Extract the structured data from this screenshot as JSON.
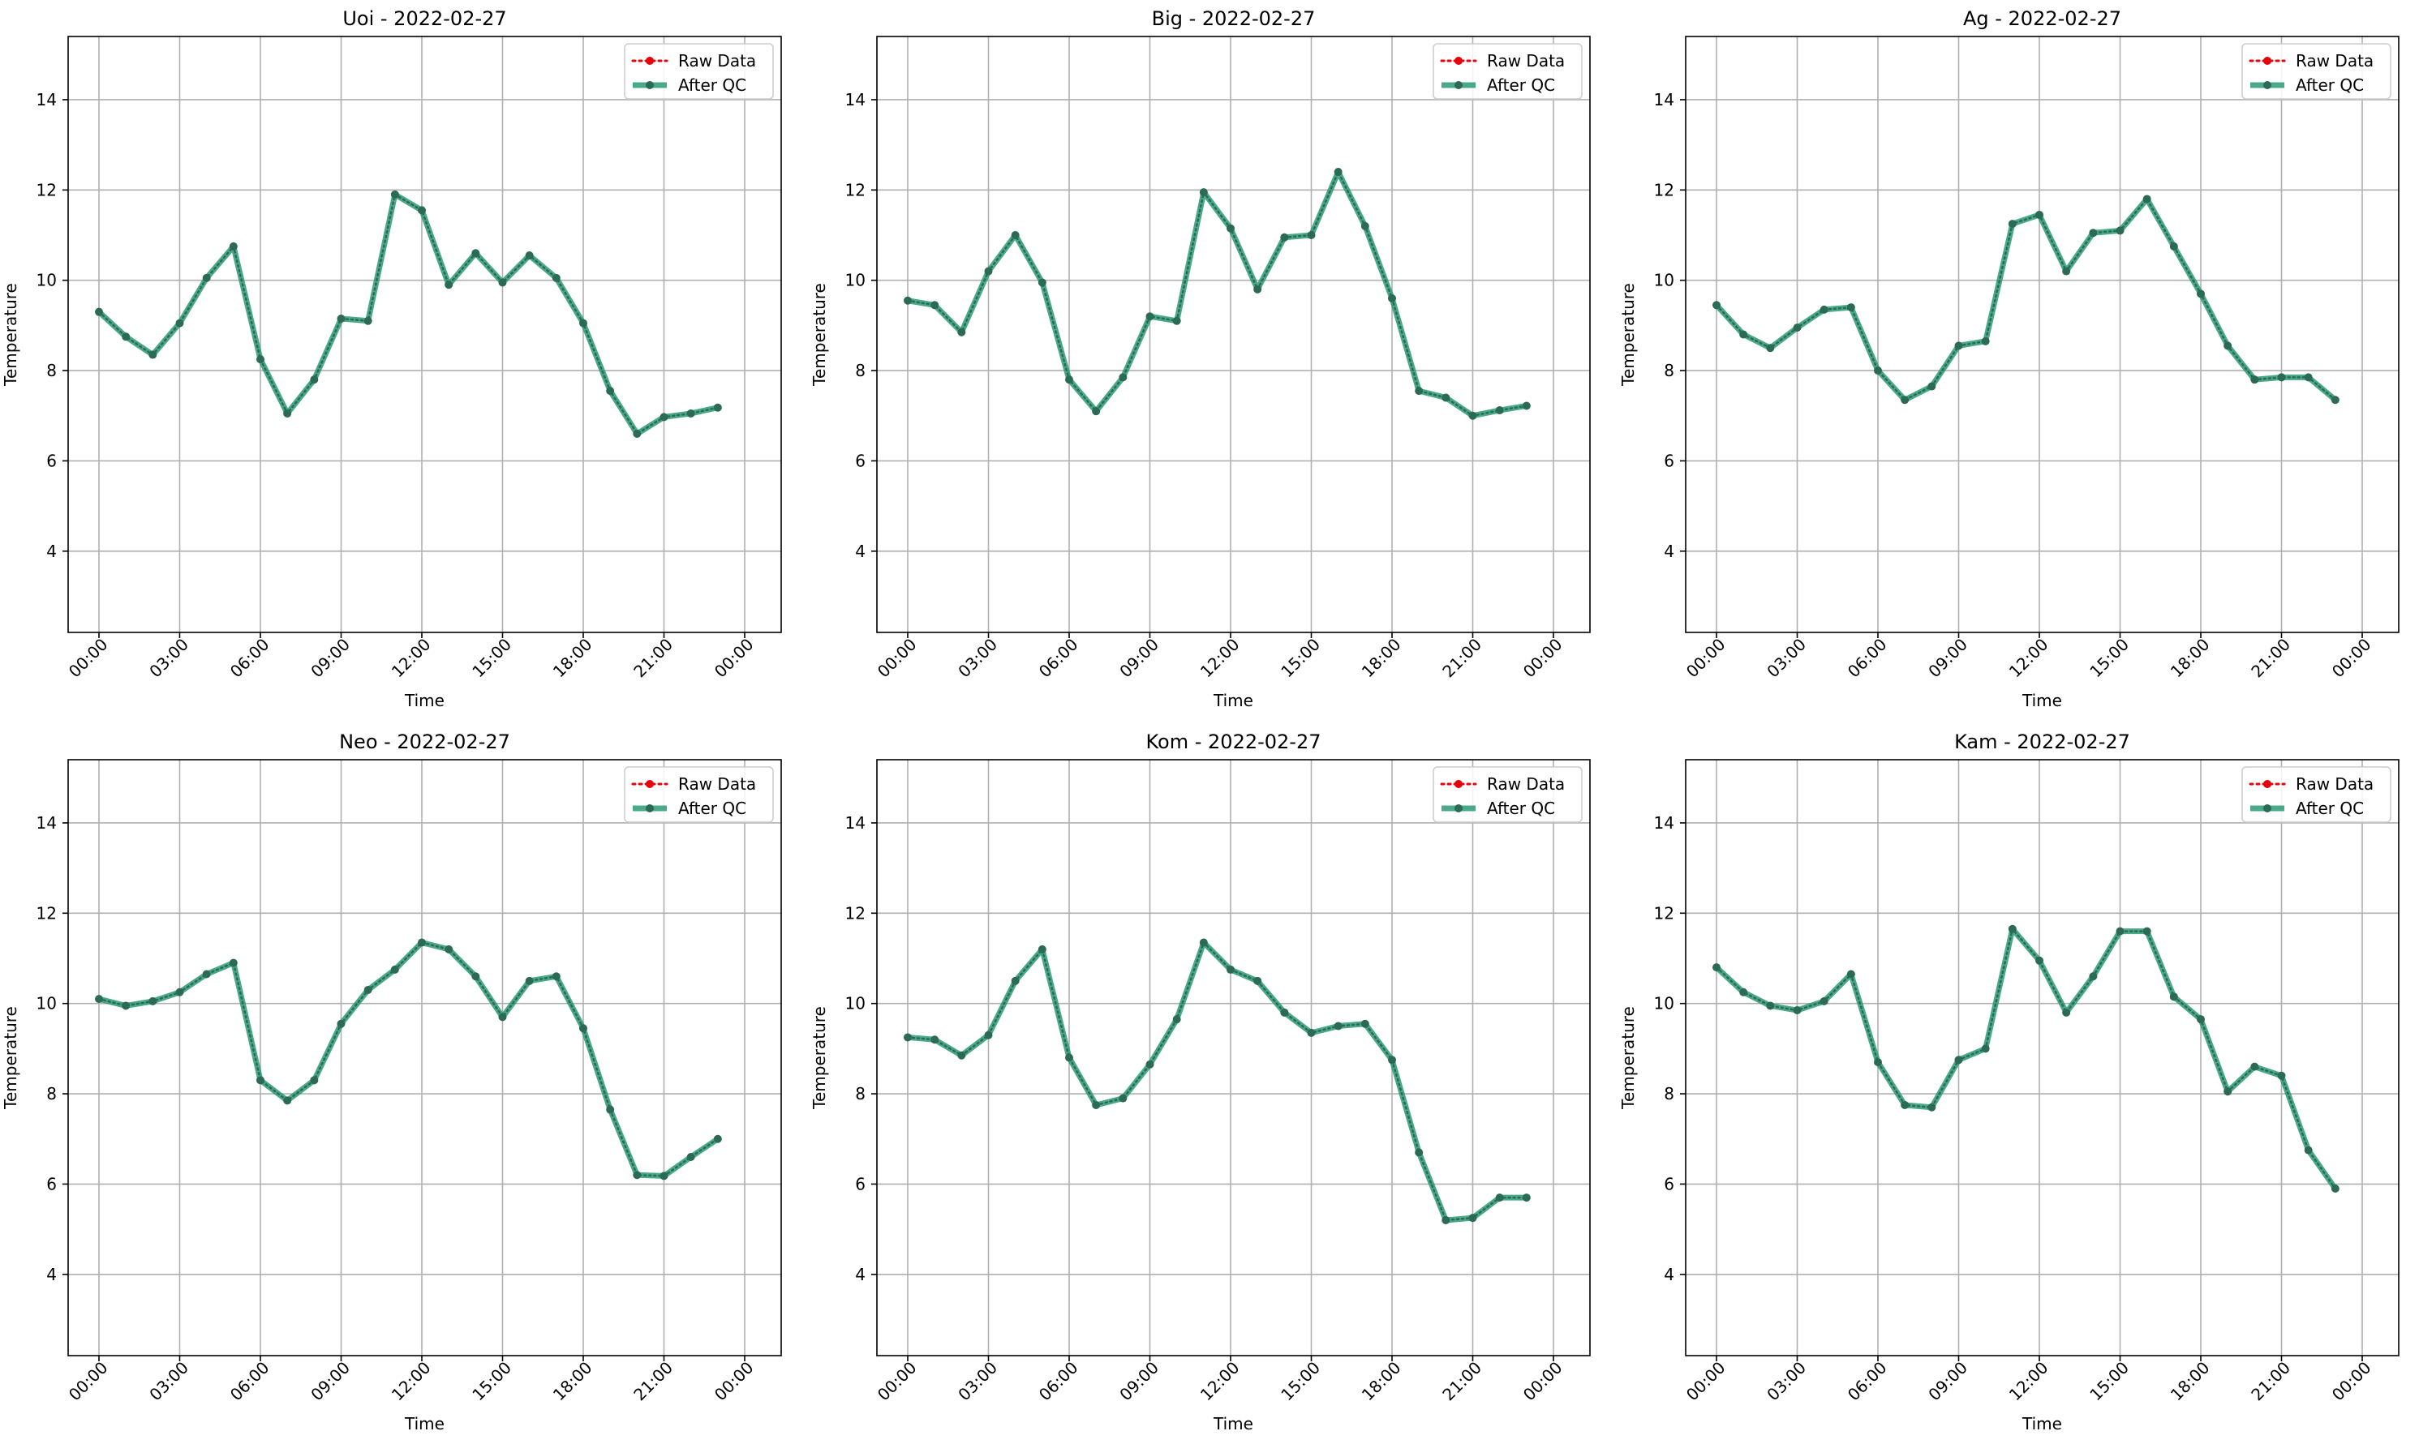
{
  "legend_labels": {
    "raw": "Raw Data",
    "qc": "After QC"
  },
  "colors": {
    "raw": "#e8000b",
    "qc": "#2a9a73",
    "marker_edge": "#2b6b55",
    "grid": "#b0b0b0",
    "axis": "#000000"
  },
  "chart_data": [
    {
      "type": "line",
      "title": "Uoi - 2022-02-27",
      "xlabel": "Time",
      "ylabel": "Temperature",
      "x_ticks": [
        "00:00",
        "03:00",
        "06:00",
        "09:00",
        "12:00",
        "15:00",
        "18:00",
        "21:00",
        "00:00"
      ],
      "y_ticks": [
        "4",
        "6",
        "8",
        "10",
        "12",
        "14"
      ],
      "ylim": [
        2.2,
        15.4
      ],
      "grid": true,
      "legend_position": "top-right",
      "series": [
        {
          "name": "Raw Data",
          "values": [
            9.3,
            8.75,
            8.35,
            9.05,
            10.05,
            10.75,
            8.25,
            7.05,
            7.8,
            9.15,
            9.1,
            11.9,
            11.55,
            9.9,
            10.6,
            9.95,
            10.55,
            10.05,
            9.05,
            7.55,
            6.6,
            6.97,
            7.05,
            7.18
          ]
        },
        {
          "name": "After QC",
          "values": [
            9.3,
            8.75,
            8.35,
            9.05,
            10.05,
            10.75,
            8.25,
            7.05,
            7.8,
            9.15,
            9.1,
            11.9,
            11.55,
            9.9,
            10.6,
            9.95,
            10.55,
            10.05,
            9.05,
            7.55,
            6.6,
            6.97,
            7.05,
            7.18
          ]
        }
      ]
    },
    {
      "type": "line",
      "title": "Big - 2022-02-27",
      "xlabel": "Time",
      "ylabel": "Temperature",
      "x_ticks": [
        "00:00",
        "03:00",
        "06:00",
        "09:00",
        "12:00",
        "15:00",
        "18:00",
        "21:00",
        "00:00"
      ],
      "y_ticks": [
        "4",
        "6",
        "8",
        "10",
        "12",
        "14"
      ],
      "ylim": [
        2.2,
        15.4
      ],
      "grid": true,
      "legend_position": "top-right",
      "series": [
        {
          "name": "Raw Data",
          "values": [
            9.55,
            9.45,
            8.85,
            10.2,
            11.0,
            9.95,
            7.8,
            7.1,
            7.85,
            9.2,
            9.1,
            11.95,
            11.15,
            9.8,
            10.95,
            11.0,
            12.4,
            11.2,
            9.6,
            7.55,
            7.4,
            7.0,
            7.12,
            7.22
          ]
        },
        {
          "name": "After QC",
          "values": [
            9.55,
            9.45,
            8.85,
            10.2,
            11.0,
            9.95,
            7.8,
            7.1,
            7.85,
            9.2,
            9.1,
            11.95,
            11.15,
            9.8,
            10.95,
            11.0,
            12.4,
            11.2,
            9.6,
            7.55,
            7.4,
            7.0,
            7.12,
            7.22
          ]
        }
      ]
    },
    {
      "type": "line",
      "title": "Ag - 2022-02-27",
      "xlabel": "Time",
      "ylabel": "Temperature",
      "x_ticks": [
        "00:00",
        "03:00",
        "06:00",
        "09:00",
        "12:00",
        "15:00",
        "18:00",
        "21:00",
        "00:00"
      ],
      "y_ticks": [
        "4",
        "6",
        "8",
        "10",
        "12",
        "14"
      ],
      "ylim": [
        2.2,
        15.4
      ],
      "grid": true,
      "legend_position": "top-right",
      "series": [
        {
          "name": "Raw Data",
          "values": [
            9.45,
            8.8,
            8.5,
            8.95,
            9.35,
            9.4,
            8.0,
            7.35,
            7.65,
            8.55,
            8.65,
            11.25,
            11.45,
            10.2,
            11.05,
            11.1,
            11.8,
            10.75,
            9.7,
            8.55,
            7.8,
            7.85,
            7.85,
            7.35
          ]
        },
        {
          "name": "After QC",
          "values": [
            9.45,
            8.8,
            8.5,
            8.95,
            9.35,
            9.4,
            8.0,
            7.35,
            7.65,
            8.55,
            8.65,
            11.25,
            11.45,
            10.2,
            11.05,
            11.1,
            11.8,
            10.75,
            9.7,
            8.55,
            7.8,
            7.85,
            7.85,
            7.35
          ]
        }
      ]
    },
    {
      "type": "line",
      "title": "Neo - 2022-02-27",
      "xlabel": "Time",
      "ylabel": "Temperature",
      "x_ticks": [
        "00:00",
        "03:00",
        "06:00",
        "09:00",
        "12:00",
        "15:00",
        "18:00",
        "21:00",
        "00:00"
      ],
      "y_ticks": [
        "4",
        "6",
        "8",
        "10",
        "12",
        "14"
      ],
      "ylim": [
        2.2,
        15.4
      ],
      "grid": true,
      "legend_position": "top-right",
      "series": [
        {
          "name": "Raw Data",
          "values": [
            10.1,
            9.95,
            10.05,
            10.25,
            10.65,
            10.9,
            8.3,
            7.85,
            8.3,
            9.55,
            10.3,
            10.75,
            11.35,
            11.2,
            10.6,
            9.7,
            10.5,
            10.6,
            9.45,
            7.65,
            6.2,
            6.18,
            6.6,
            7.0
          ]
        },
        {
          "name": "After QC",
          "values": [
            10.1,
            9.95,
            10.05,
            10.25,
            10.65,
            10.9,
            8.3,
            7.85,
            8.3,
            9.55,
            10.3,
            10.75,
            11.35,
            11.2,
            10.6,
            9.7,
            10.5,
            10.6,
            9.45,
            7.65,
            6.2,
            6.18,
            6.6,
            7.0
          ]
        }
      ]
    },
    {
      "type": "line",
      "title": "Kom - 2022-02-27",
      "xlabel": "Time",
      "ylabel": "Temperature",
      "x_ticks": [
        "00:00",
        "03:00",
        "06:00",
        "09:00",
        "12:00",
        "15:00",
        "18:00",
        "21:00",
        "00:00"
      ],
      "y_ticks": [
        "4",
        "6",
        "8",
        "10",
        "12",
        "14"
      ],
      "ylim": [
        2.2,
        15.4
      ],
      "grid": true,
      "legend_position": "top-right",
      "series": [
        {
          "name": "Raw Data",
          "values": [
            9.25,
            9.2,
            8.85,
            9.3,
            10.5,
            11.2,
            8.8,
            7.75,
            7.9,
            8.65,
            9.65,
            11.35,
            10.75,
            10.5,
            9.8,
            9.35,
            9.5,
            9.55,
            8.75,
            6.7,
            5.2,
            5.25,
            5.7,
            5.7
          ]
        },
        {
          "name": "After QC",
          "values": [
            9.25,
            9.2,
            8.85,
            9.3,
            10.5,
            11.2,
            8.8,
            7.75,
            7.9,
            8.65,
            9.65,
            11.35,
            10.75,
            10.5,
            9.8,
            9.35,
            9.5,
            9.55,
            8.75,
            6.7,
            5.2,
            5.25,
            5.7,
            5.7
          ]
        }
      ]
    },
    {
      "type": "line",
      "title": "Kam - 2022-02-27",
      "xlabel": "Time",
      "ylabel": "Temperature",
      "x_ticks": [
        "00:00",
        "03:00",
        "06:00",
        "09:00",
        "12:00",
        "15:00",
        "18:00",
        "21:00",
        "00:00"
      ],
      "y_ticks": [
        "4",
        "6",
        "8",
        "10",
        "12",
        "14"
      ],
      "ylim": [
        2.2,
        15.4
      ],
      "grid": true,
      "legend_position": "top-right",
      "series": [
        {
          "name": "Raw Data",
          "values": [
            10.8,
            10.25,
            9.95,
            9.85,
            10.05,
            10.65,
            8.7,
            7.75,
            7.7,
            8.75,
            9.0,
            11.65,
            10.95,
            9.8,
            10.6,
            11.6,
            11.6,
            10.15,
            9.65,
            8.05,
            8.6,
            8.4,
            6.75,
            5.9
          ]
        },
        {
          "name": "After QC",
          "values": [
            10.8,
            10.25,
            9.95,
            9.85,
            10.05,
            10.65,
            8.7,
            7.75,
            7.7,
            8.75,
            9.0,
            11.65,
            10.95,
            9.8,
            10.6,
            11.6,
            11.6,
            10.15,
            9.65,
            8.05,
            8.6,
            8.4,
            6.75,
            5.9
          ]
        }
      ]
    }
  ]
}
